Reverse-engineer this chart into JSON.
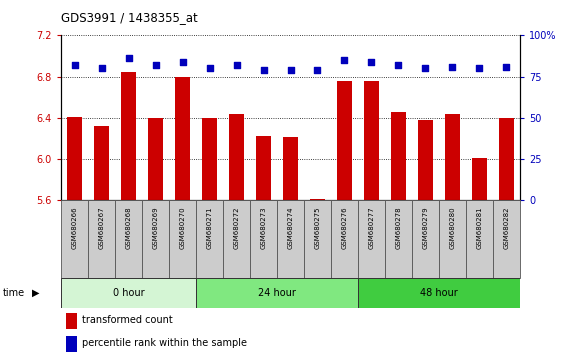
{
  "title": "GDS3991 / 1438355_at",
  "samples": [
    "GSM680266",
    "GSM680267",
    "GSM680268",
    "GSM680269",
    "GSM680270",
    "GSM680271",
    "GSM680272",
    "GSM680273",
    "GSM680274",
    "GSM680275",
    "GSM680276",
    "GSM680277",
    "GSM680278",
    "GSM680279",
    "GSM680280",
    "GSM680281",
    "GSM680282"
  ],
  "transformed_count": [
    6.41,
    6.32,
    6.84,
    6.4,
    6.8,
    6.4,
    6.44,
    6.22,
    6.21,
    5.61,
    6.76,
    6.76,
    6.46,
    6.38,
    6.44,
    6.01,
    6.4
  ],
  "percentile_rank": [
    82,
    80,
    86,
    82,
    84,
    80,
    82,
    79,
    79,
    79,
    85,
    84,
    82,
    80,
    81,
    80,
    81
  ],
  "groups": [
    {
      "label": "0 hour",
      "start": 0,
      "end": 5,
      "color": "#d4f5d4"
    },
    {
      "label": "24 hour",
      "start": 5,
      "end": 11,
      "color": "#80e880"
    },
    {
      "label": "48 hour",
      "start": 11,
      "end": 17,
      "color": "#40cc40"
    }
  ],
  "ylim_left": [
    5.6,
    7.2
  ],
  "ylim_right": [
    0,
    100
  ],
  "yticks_left": [
    5.6,
    6.0,
    6.4,
    6.8,
    7.2
  ],
  "yticks_right": [
    0,
    25,
    50,
    75,
    100
  ],
  "bar_color": "#cc0000",
  "dot_color": "#0000bb",
  "tick_label_color_left": "#cc0000",
  "tick_label_color_right": "#0000bb",
  "bar_baseline": 5.6,
  "sample_box_color": "#cccccc",
  "sample_box_edge": "#888888"
}
